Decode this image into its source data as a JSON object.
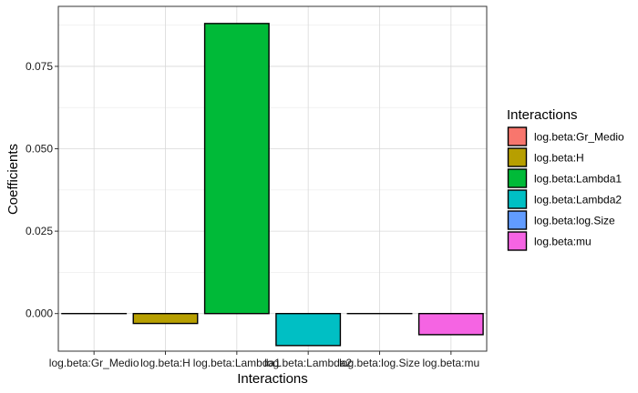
{
  "chart_data": {
    "type": "bar",
    "title": "",
    "xlabel": "Interactions",
    "ylabel": "Coefficients",
    "categories": [
      "log.beta:Gr_Medio",
      "log.beta:H",
      "log.beta:Lambda1",
      "log.beta:Lambda2",
      "log.beta:log.Size",
      "log.beta:mu"
    ],
    "values": [
      0.0,
      -0.003,
      0.088,
      -0.0097,
      0.0,
      -0.0064
    ],
    "colors": [
      "#F8766D",
      "#B79F00",
      "#00BA38",
      "#00BFC4",
      "#619CFF",
      "#F564E3"
    ],
    "ylim": [
      -0.0114,
      0.0932
    ],
    "yticks": [
      0.0,
      0.025,
      0.05,
      0.075
    ],
    "ytick_labels": [
      "0.000",
      "0.025",
      "0.050",
      "0.075"
    ],
    "grid": true,
    "legend": {
      "title": "Interactions",
      "placement": "right",
      "entries": [
        "log.beta:Gr_Medio",
        "log.beta:H",
        "log.beta:Lambda1",
        "log.beta:Lambda2",
        "log.beta:log.Size",
        "log.beta:mu"
      ]
    }
  }
}
